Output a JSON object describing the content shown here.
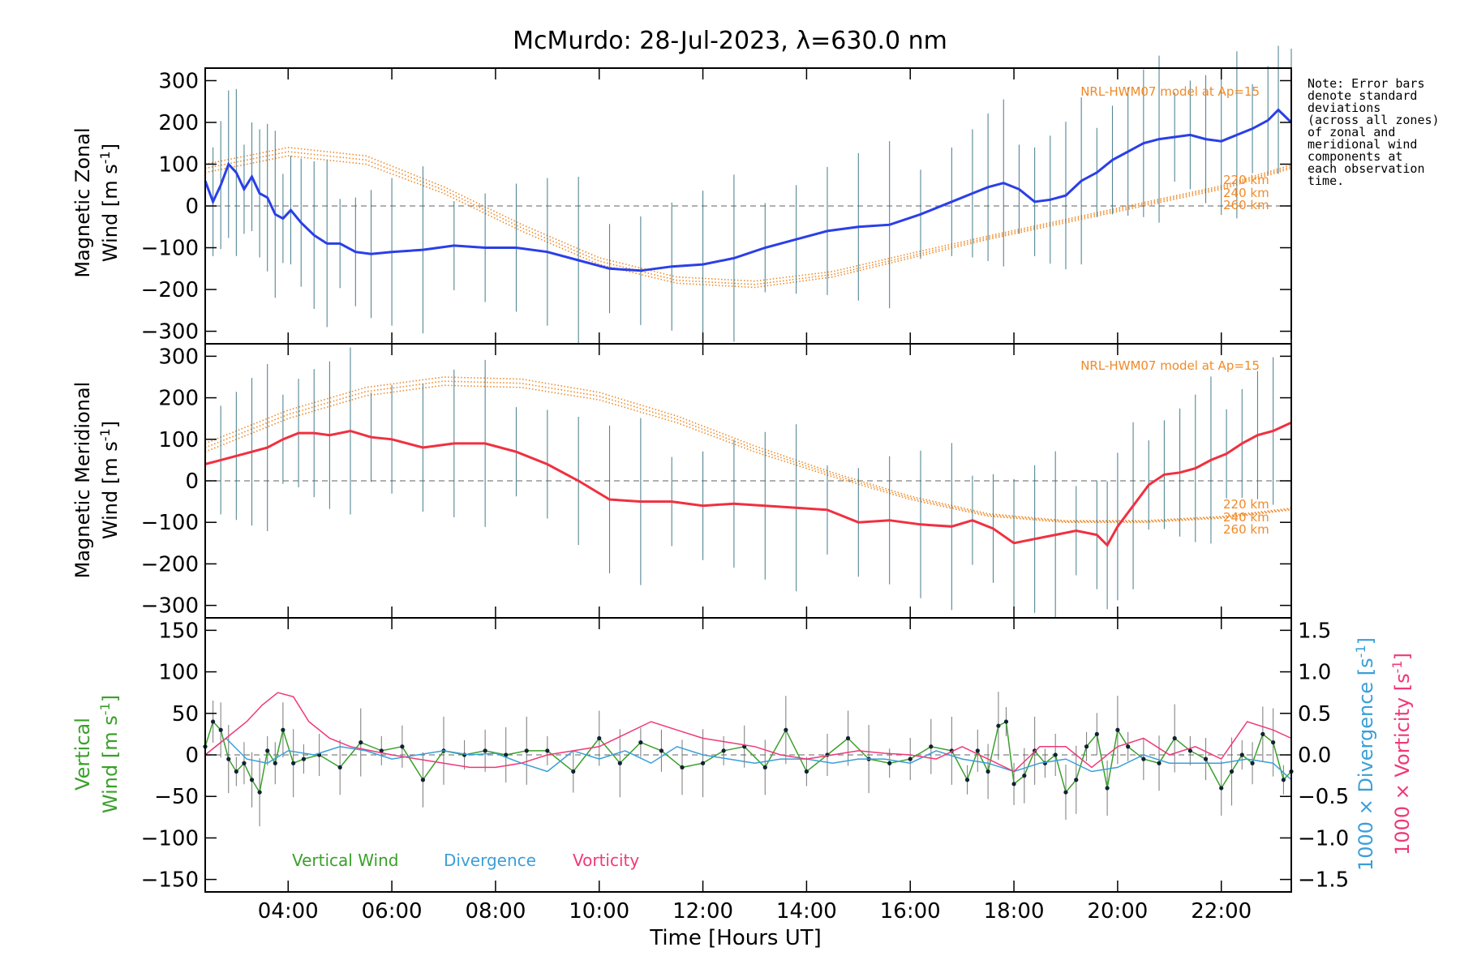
{
  "chart_data": [
    {
      "type": "line",
      "figure_title": "McMurdo: 28-Jul-2023, λ=630.0 nm",
      "panel": "zonal",
      "ylabel": [
        "Magnetic Zonal",
        "Wind [m s",
        "-1",
        "]"
      ],
      "xlim": [
        2.4,
        23.35
      ],
      "ylim": [
        -330,
        330
      ],
      "yticks": [
        300,
        200,
        100,
        0,
        -100,
        -200,
        -300
      ],
      "ytick_labels": [
        "300",
        "200",
        "100",
        "0",
        "−100",
        "−200",
        "−300"
      ],
      "model_label": "NRL-HWM07 model at Ap=15",
      "model_altitudes": [
        "220 km",
        "240 km",
        "260 km"
      ],
      "note": [
        "Note: Error bars",
        "denote standard",
        "deviations",
        "(across all zones)",
        "of zonal and",
        "meridional wind",
        "components at",
        "each observation",
        "time."
      ],
      "series": [
        {
          "name": "Zonal wind",
          "color": "#2a3fe8",
          "x": [
            2.4,
            2.55,
            2.7,
            2.85,
            3.0,
            3.15,
            3.3,
            3.45,
            3.6,
            3.75,
            3.9,
            4.05,
            4.25,
            4.5,
            4.75,
            5.0,
            5.3,
            5.6,
            6.0,
            6.6,
            7.2,
            7.8,
            8.4,
            9.0,
            9.6,
            10.2,
            10.8,
            11.4,
            12.0,
            12.6,
            13.2,
            13.8,
            14.4,
            15.0,
            15.6,
            16.2,
            16.8,
            17.2,
            17.5,
            17.8,
            18.1,
            18.4,
            18.7,
            19.0,
            19.3,
            19.6,
            19.9,
            20.2,
            20.5,
            20.8,
            21.1,
            21.4,
            21.7,
            22.0,
            22.3,
            22.6,
            22.9,
            23.1,
            23.35
          ],
          "values": [
            60,
            10,
            50,
            100,
            80,
            40,
            70,
            30,
            20,
            -20,
            -30,
            -10,
            -40,
            -70,
            -90,
            -90,
            -110,
            -115,
            -110,
            -105,
            -95,
            -100,
            -100,
            -110,
            -130,
            -150,
            -155,
            -145,
            -140,
            -125,
            -100,
            -80,
            -60,
            -50,
            -45,
            -20,
            10,
            30,
            45,
            55,
            40,
            10,
            15,
            25,
            60,
            80,
            110,
            130,
            150,
            160,
            165,
            170,
            160,
            155,
            170,
            185,
            205,
            230,
            200
          ]
        },
        {
          "name": "Model 220 km",
          "color": "#f08a28",
          "x": [
            2.4,
            4.0,
            5.5,
            7.0,
            8.5,
            10.0,
            11.5,
            13.0,
            14.5,
            16.0,
            17.5,
            19.0,
            20.5,
            22.0,
            23.35
          ],
          "values": [
            80,
            120,
            100,
            30,
            -60,
            -140,
            -185,
            -195,
            -170,
            -125,
            -80,
            -40,
            0,
            40,
            90
          ]
        },
        {
          "name": "Model 240 km",
          "color": "#f08a28",
          "x": [
            2.4,
            4.0,
            5.5,
            7.0,
            8.5,
            10.0,
            11.5,
            13.0,
            14.5,
            16.0,
            17.5,
            19.0,
            20.5,
            22.0,
            23.35
          ],
          "values": [
            90,
            130,
            110,
            38,
            -52,
            -132,
            -178,
            -188,
            -164,
            -120,
            -76,
            -36,
            4,
            44,
            94
          ]
        },
        {
          "name": "Model 260 km",
          "color": "#f08a28",
          "x": [
            2.4,
            4.0,
            5.5,
            7.0,
            8.5,
            10.0,
            11.5,
            13.0,
            14.5,
            16.0,
            17.5,
            19.0,
            20.5,
            22.0,
            23.35
          ],
          "values": [
            100,
            140,
            120,
            46,
            -44,
            -124,
            -170,
            -180,
            -157,
            -114,
            -72,
            -32,
            8,
            48,
            98
          ]
        }
      ]
    },
    {
      "type": "line",
      "panel": "meridional",
      "ylabel": [
        "Magnetic Meridional",
        "Wind [m s",
        "-1",
        "]"
      ],
      "xlim": [
        2.4,
        23.35
      ],
      "ylim": [
        -330,
        330
      ],
      "yticks": [
        300,
        200,
        100,
        0,
        -100,
        -200,
        -300
      ],
      "ytick_labels": [
        "300",
        "200",
        "100",
        "0",
        "−100",
        "−200",
        "−300"
      ],
      "model_label": "NRL-HWM07 model at Ap=15",
      "model_altitudes": [
        "220 km",
        "240 km",
        "260 km"
      ],
      "series": [
        {
          "name": "Meridional wind",
          "color": "#f03040",
          "x": [
            2.4,
            2.7,
            3.0,
            3.3,
            3.6,
            3.9,
            4.2,
            4.5,
            4.8,
            5.2,
            5.6,
            6.0,
            6.6,
            7.2,
            7.8,
            8.4,
            9.0,
            9.6,
            10.2,
            10.8,
            11.4,
            12.0,
            12.6,
            13.2,
            13.8,
            14.4,
            15.0,
            15.6,
            16.2,
            16.8,
            17.2,
            17.6,
            18.0,
            18.4,
            18.8,
            19.2,
            19.6,
            19.8,
            20.0,
            20.3,
            20.6,
            20.9,
            21.2,
            21.5,
            21.8,
            22.1,
            22.4,
            22.7,
            23.0,
            23.35
          ],
          "values": [
            40,
            50,
            60,
            70,
            80,
            100,
            115,
            115,
            110,
            120,
            105,
            100,
            80,
            90,
            90,
            70,
            40,
            0,
            -45,
            -50,
            -50,
            -60,
            -55,
            -60,
            -65,
            -70,
            -100,
            -95,
            -105,
            -110,
            -95,
            -115,
            -150,
            -140,
            -130,
            -120,
            -130,
            -155,
            -110,
            -60,
            -10,
            15,
            20,
            30,
            50,
            65,
            90,
            110,
            120,
            140
          ]
        },
        {
          "name": "Model 220 km",
          "color": "#f08a28",
          "x": [
            2.4,
            4.0,
            5.5,
            7.0,
            8.5,
            10.0,
            11.5,
            13.0,
            14.5,
            16.0,
            17.5,
            19.0,
            20.5,
            22.0,
            23.35
          ],
          "values": [
            70,
            150,
            205,
            230,
            225,
            195,
            140,
            70,
            10,
            -45,
            -85,
            -100,
            -100,
            -90,
            -70
          ]
        },
        {
          "name": "Model 240 km",
          "color": "#f08a28",
          "x": [
            2.4,
            4.0,
            5.5,
            7.0,
            8.5,
            10.0,
            11.5,
            13.0,
            14.5,
            16.0,
            17.5,
            19.0,
            20.5,
            22.0,
            23.35
          ],
          "values": [
            80,
            160,
            215,
            240,
            235,
            204,
            148,
            77,
            15,
            -41,
            -82,
            -98,
            -98,
            -88,
            -68
          ]
        },
        {
          "name": "Model 260 km",
          "color": "#f08a28",
          "x": [
            2.4,
            4.0,
            5.5,
            7.0,
            8.5,
            10.0,
            11.5,
            13.0,
            14.5,
            16.0,
            17.5,
            19.0,
            20.5,
            22.0,
            23.35
          ],
          "values": [
            90,
            170,
            225,
            250,
            245,
            213,
            156,
            84,
            20,
            -37,
            -79,
            -96,
            -96,
            -86,
            -66
          ]
        }
      ]
    },
    {
      "type": "line",
      "panel": "vertical",
      "xlabel": "Time [Hours UT]",
      "xticks": [
        4,
        6,
        8,
        10,
        12,
        14,
        16,
        18,
        20,
        22
      ],
      "xtick_labels": [
        "04:00",
        "06:00",
        "08:00",
        "10:00",
        "12:00",
        "14:00",
        "16:00",
        "18:00",
        "20:00",
        "22:00"
      ],
      "xlim": [
        2.4,
        23.35
      ],
      "ylim": [
        -165,
        165
      ],
      "yticks": [
        150,
        100,
        50,
        0,
        -50,
        -100,
        -150
      ],
      "ytick_labels": [
        "150",
        "100",
        "50",
        "0",
        "−50",
        "−100",
        "−150"
      ],
      "y2lim": [
        -1.65,
        1.65
      ],
      "y2ticks": [
        1.5,
        1.0,
        0.5,
        0.0,
        -0.5,
        -1.0,
        -1.5
      ],
      "y2tick_labels": [
        "1.5",
        "1.0",
        "0.5",
        "0.0",
        "−0.5",
        "−1.0",
        "−1.5"
      ],
      "ylabel": [
        "Vertical",
        "Wind [m s",
        "-1",
        "]"
      ],
      "y2label_divergence": [
        "1000 × Divergence [s",
        "-1",
        "]"
      ],
      "y2label_vorticity": [
        "1000 × Vorticity [s",
        "-1",
        "]"
      ],
      "legend": [
        "Vertical Wind",
        "Divergence",
        "Vorticity"
      ],
      "series": [
        {
          "name": "Vertical Wind",
          "color": "#3aa02a",
          "axis": "left",
          "x": [
            2.4,
            2.55,
            2.7,
            2.85,
            3.0,
            3.15,
            3.3,
            3.45,
            3.6,
            3.75,
            3.9,
            4.1,
            4.3,
            4.6,
            5.0,
            5.4,
            5.8,
            6.2,
            6.6,
            7.0,
            7.4,
            7.8,
            8.2,
            8.6,
            9.0,
            9.5,
            10.0,
            10.4,
            10.8,
            11.2,
            11.6,
            12.0,
            12.4,
            12.8,
            13.2,
            13.6,
            14.0,
            14.4,
            14.8,
            15.2,
            15.6,
            16.0,
            16.4,
            16.8,
            17.1,
            17.3,
            17.5,
            17.7,
            17.85,
            18.0,
            18.2,
            18.4,
            18.6,
            18.8,
            19.0,
            19.2,
            19.4,
            19.6,
            19.8,
            20.0,
            20.2,
            20.5,
            20.8,
            21.1,
            21.4,
            21.7,
            22.0,
            22.2,
            22.4,
            22.6,
            22.8,
            23.0,
            23.2,
            23.35
          ],
          "values": [
            10,
            40,
            30,
            -5,
            -20,
            -10,
            -30,
            -45,
            5,
            -10,
            30,
            -10,
            -5,
            0,
            -15,
            15,
            5,
            10,
            -30,
            5,
            0,
            5,
            0,
            5,
            5,
            -20,
            20,
            -10,
            15,
            5,
            -15,
            -10,
            5,
            10,
            -15,
            30,
            -20,
            0,
            20,
            -5,
            -10,
            -5,
            10,
            5,
            -30,
            5,
            -20,
            35,
            40,
            -35,
            -25,
            5,
            -10,
            0,
            -45,
            -30,
            10,
            25,
            -40,
            30,
            10,
            -5,
            -10,
            20,
            5,
            -5,
            -40,
            -20,
            0,
            -10,
            25,
            15,
            -30,
            -20
          ]
        },
        {
          "name": "Divergence",
          "color": "#3a9fd8",
          "axis": "right",
          "x": [
            2.4,
            2.8,
            3.2,
            3.6,
            4.0,
            4.5,
            5.0,
            5.5,
            6.0,
            6.5,
            7.0,
            7.5,
            8.0,
            8.5,
            9.0,
            9.5,
            10.0,
            10.5,
            11.0,
            11.5,
            12.0,
            12.5,
            13.0,
            13.5,
            14.0,
            14.5,
            15.0,
            15.5,
            16.0,
            16.5,
            17.0,
            17.5,
            18.0,
            18.5,
            19.0,
            19.5,
            20.0,
            20.5,
            21.0,
            21.5,
            22.0,
            22.5,
            23.0,
            23.35
          ],
          "values": [
            0.0,
            0.2,
            -0.05,
            -0.1,
            0.05,
            0.0,
            0.1,
            0.05,
            -0.05,
            0.0,
            0.05,
            0.0,
            0.02,
            -0.1,
            -0.2,
            0.05,
            -0.05,
            0.05,
            -0.1,
            0.1,
            0.0,
            -0.05,
            -0.1,
            -0.05,
            -0.05,
            -0.1,
            -0.05,
            -0.05,
            -0.1,
            0.05,
            -0.05,
            -0.1,
            -0.2,
            -0.1,
            -0.05,
            -0.2,
            -0.15,
            0.0,
            -0.1,
            -0.1,
            -0.1,
            -0.05,
            -0.1,
            -0.3
          ]
        },
        {
          "name": "Vorticity",
          "color": "#f03878",
          "axis": "right",
          "x": [
            2.4,
            2.8,
            3.2,
            3.5,
            3.8,
            4.1,
            4.4,
            4.8,
            5.2,
            5.6,
            6.0,
            6.5,
            7.0,
            7.5,
            8.0,
            8.5,
            9.0,
            9.5,
            10.0,
            10.5,
            11.0,
            11.5,
            12.0,
            12.5,
            13.0,
            13.5,
            14.0,
            14.5,
            15.0,
            15.5,
            16.0,
            16.5,
            17.0,
            17.5,
            18.0,
            18.5,
            19.0,
            19.5,
            20.0,
            20.5,
            21.0,
            21.5,
            22.0,
            22.5,
            23.0,
            23.35
          ],
          "values": [
            0.0,
            0.2,
            0.4,
            0.6,
            0.75,
            0.7,
            0.4,
            0.2,
            0.1,
            0.05,
            0.0,
            -0.05,
            -0.1,
            -0.15,
            -0.15,
            -0.1,
            0.0,
            0.05,
            0.1,
            0.25,
            0.4,
            0.3,
            0.2,
            0.15,
            0.1,
            0.0,
            -0.05,
            0.0,
            0.05,
            0.02,
            0.0,
            -0.05,
            0.1,
            -0.05,
            -0.2,
            0.1,
            0.1,
            -0.15,
            0.1,
            0.2,
            0.0,
            0.1,
            -0.05,
            0.4,
            0.3,
            0.2
          ]
        }
      ]
    }
  ]
}
